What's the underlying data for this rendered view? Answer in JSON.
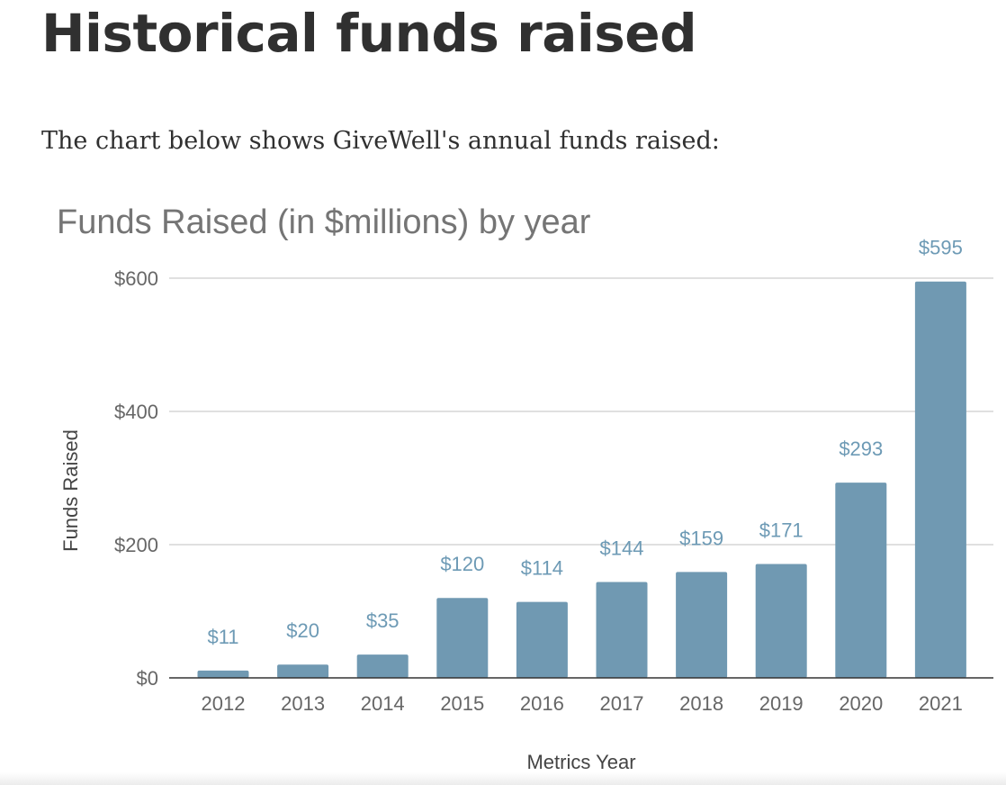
{
  "page": {
    "heading": "Historical funds raised",
    "intro": "The chart below shows GiveWell's annual funds raised:"
  },
  "chart_data": {
    "type": "bar",
    "title": "Funds Raised (in $millions) by year",
    "xlabel": "Metrics Year",
    "ylabel": "Funds Raised",
    "categories": [
      "2012",
      "2013",
      "2014",
      "2015",
      "2016",
      "2017",
      "2018",
      "2019",
      "2020",
      "2021"
    ],
    "values": [
      11,
      20,
      35,
      120,
      114,
      144,
      159,
      171,
      293,
      595
    ],
    "value_labels": [
      "$11",
      "$20",
      "$35",
      "$120",
      "$114",
      "$144",
      "$159",
      "$171",
      "$293",
      "$595"
    ],
    "ylim": [
      0,
      600
    ],
    "yticks": [
      0,
      200,
      400,
      600
    ],
    "ytick_labels": [
      "$0",
      "$200",
      "$400",
      "$600"
    ],
    "grid": true,
    "bar_color": "#7099b2",
    "label_color": "#6d9ab5",
    "grid_color": "#d6d6d6"
  }
}
